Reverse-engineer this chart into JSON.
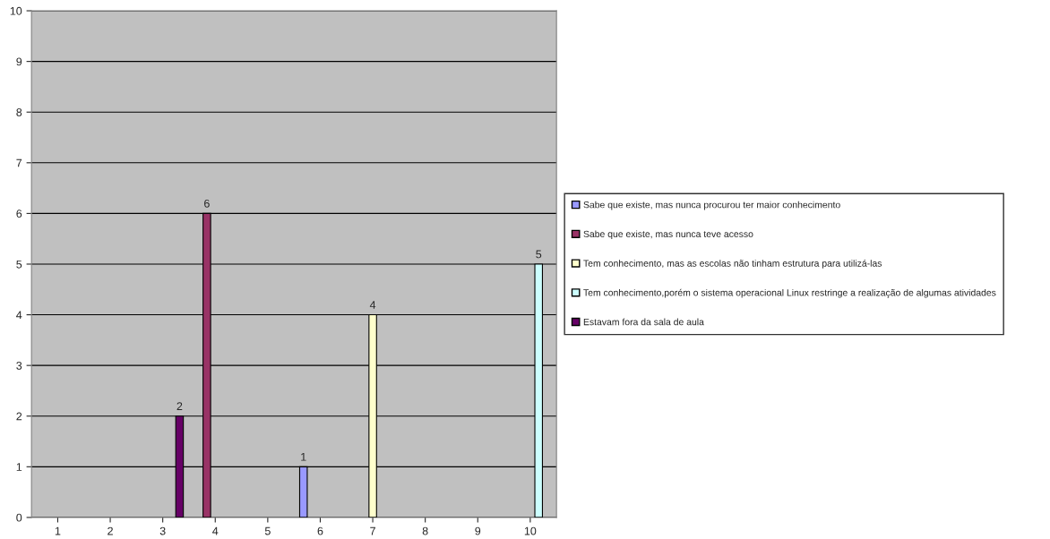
{
  "chart_data": {
    "type": "bar",
    "categories": [
      "1",
      "2",
      "3",
      "4",
      "5",
      "6",
      "7",
      "8",
      "9",
      "10"
    ],
    "series": [
      {
        "name": "Sabe que existe, mas nunca procurou ter maior conhecimento",
        "color": "#9999ff",
        "values": [
          null,
          null,
          null,
          null,
          null,
          1,
          null,
          null,
          null,
          null
        ]
      },
      {
        "name": "Sabe que existe, mas nunca teve acesso",
        "color": "#993366",
        "values": [
          null,
          null,
          null,
          6,
          null,
          null,
          null,
          null,
          null,
          null
        ]
      },
      {
        "name": "Tem conhecimento, mas as escolas não tinham estrutura para utilizá-las",
        "color": "#ffffcc",
        "values": [
          null,
          null,
          null,
          null,
          null,
          null,
          4,
          null,
          null,
          null
        ]
      },
      {
        "name": "Tem conhecimento,porém o sistema operacional Linux restringe a realização de algumas atividades",
        "color": "#ccffff",
        "values": [
          null,
          null,
          null,
          null,
          null,
          null,
          null,
          null,
          null,
          5
        ]
      },
      {
        "name": "Estavam fora da sala de aula",
        "color": "#660066",
        "values": [
          null,
          null,
          2,
          null,
          null,
          null,
          null,
          null,
          null,
          null
        ]
      }
    ],
    "ylim": [
      0,
      10
    ],
    "yticks": [
      0,
      1,
      2,
      3,
      4,
      5,
      6,
      7,
      8,
      9,
      10
    ],
    "grid": "y",
    "legend": "right",
    "data_labels": true
  }
}
